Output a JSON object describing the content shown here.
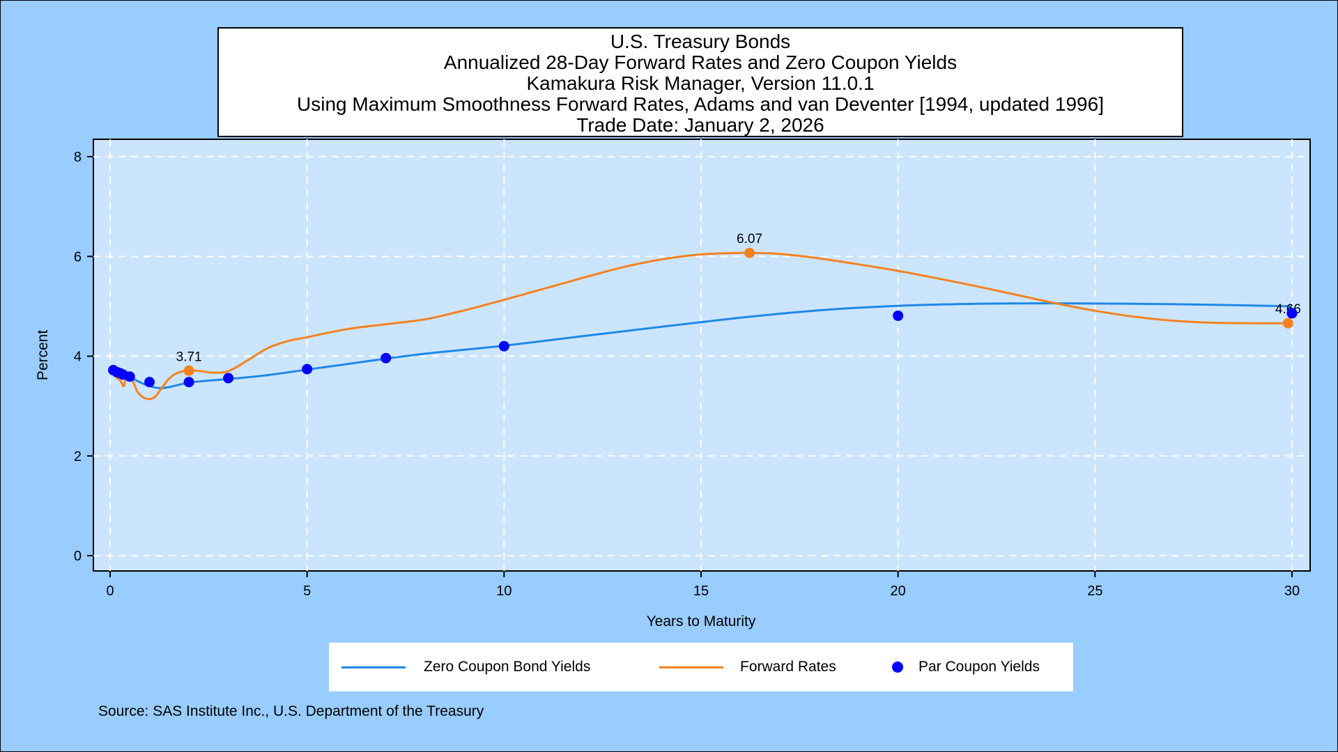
{
  "titles": [
    "U.S. Treasury Bonds",
    "Annualized 28-Day Forward Rates and Zero Coupon Yields",
    "Kamakura Risk Manager, Version 11.0.1",
    "Using Maximum Smoothness Forward Rates, Adams and van Deventer [1994, updated 1996]",
    "Trade Date: January 2, 2026"
  ],
  "source": "Source: SAS Institute Inc., U.S. Department of the Treasury",
  "chart_data": {
    "type": "line",
    "xlabel": "Years to Maturity",
    "ylabel": "Percent",
    "xlim": [
      0,
      30
    ],
    "ylim": [
      0,
      8
    ],
    "x_ticks": [
      0,
      5,
      10,
      15,
      20,
      25,
      30
    ],
    "y_ticks": [
      0,
      2,
      4,
      6,
      8
    ],
    "grid": true,
    "legend_position": "bottom",
    "series": [
      {
        "name": "Zero Coupon Bond Yields",
        "kind": "line",
        "color": "#1e88e5",
        "x": [
          0.08,
          0.25,
          0.5,
          0.75,
          1,
          1.25,
          1.5,
          2,
          2.5,
          3,
          4,
          5,
          6,
          7,
          8,
          9,
          10,
          12,
          14,
          16,
          18,
          20,
          22,
          24,
          26,
          28,
          30
        ],
        "y": [
          3.7,
          3.66,
          3.58,
          3.48,
          3.4,
          3.36,
          3.38,
          3.47,
          3.51,
          3.54,
          3.62,
          3.73,
          3.84,
          3.95,
          4.05,
          4.13,
          4.21,
          4.4,
          4.59,
          4.77,
          4.92,
          5.01,
          5.05,
          5.06,
          5.05,
          5.03,
          5.0
        ]
      },
      {
        "name": "Forward Rates",
        "kind": "line",
        "color": "#f5821f",
        "x": [
          0.08,
          0.15,
          0.25,
          0.3,
          0.35,
          0.4,
          0.5,
          0.6,
          0.7,
          0.85,
          1.0,
          1.15,
          1.3,
          1.5,
          1.7,
          2.0,
          2.3,
          2.6,
          3.0,
          3.5,
          4.0,
          4.5,
          5.0,
          6.0,
          7.0,
          8.0,
          9.0,
          10.0,
          11.0,
          12.0,
          13.0,
          14.0,
          15.0,
          16.0,
          16.23,
          17.0,
          18.0,
          19.0,
          20.0,
          21.0,
          22.0,
          23.0,
          24.0,
          25.0,
          26.0,
          27.0,
          28.0,
          29.0,
          29.9
        ],
        "y": [
          3.7,
          3.58,
          3.52,
          3.45,
          3.4,
          3.55,
          3.62,
          3.46,
          3.28,
          3.17,
          3.14,
          3.19,
          3.35,
          3.55,
          3.66,
          3.71,
          3.7,
          3.67,
          3.7,
          3.92,
          4.16,
          4.3,
          4.38,
          4.54,
          4.64,
          4.74,
          4.92,
          5.13,
          5.35,
          5.57,
          5.78,
          5.94,
          6.04,
          6.07,
          6.07,
          6.05,
          5.96,
          5.84,
          5.71,
          5.56,
          5.4,
          5.23,
          5.06,
          4.91,
          4.79,
          4.71,
          4.67,
          4.66,
          4.66
        ]
      },
      {
        "name": "Par Coupon Yields",
        "kind": "scatter",
        "color": "#0000ff",
        "x": [
          0.08,
          0.17,
          0.25,
          0.33,
          0.5,
          1,
          2,
          3,
          5,
          7,
          10,
          20,
          30
        ],
        "y": [
          3.72,
          3.68,
          3.66,
          3.63,
          3.59,
          3.48,
          3.48,
          3.56,
          3.74,
          3.96,
          4.2,
          4.81,
          4.86
        ]
      }
    ],
    "highlight_points": [
      {
        "x": 2.0,
        "y": 3.71,
        "label": "3.71"
      },
      {
        "x": 16.23,
        "y": 6.07,
        "label": "6.07"
      },
      {
        "x": 29.9,
        "y": 4.66,
        "label": "4.66"
      }
    ],
    "highlight_color": "#f5821f"
  }
}
